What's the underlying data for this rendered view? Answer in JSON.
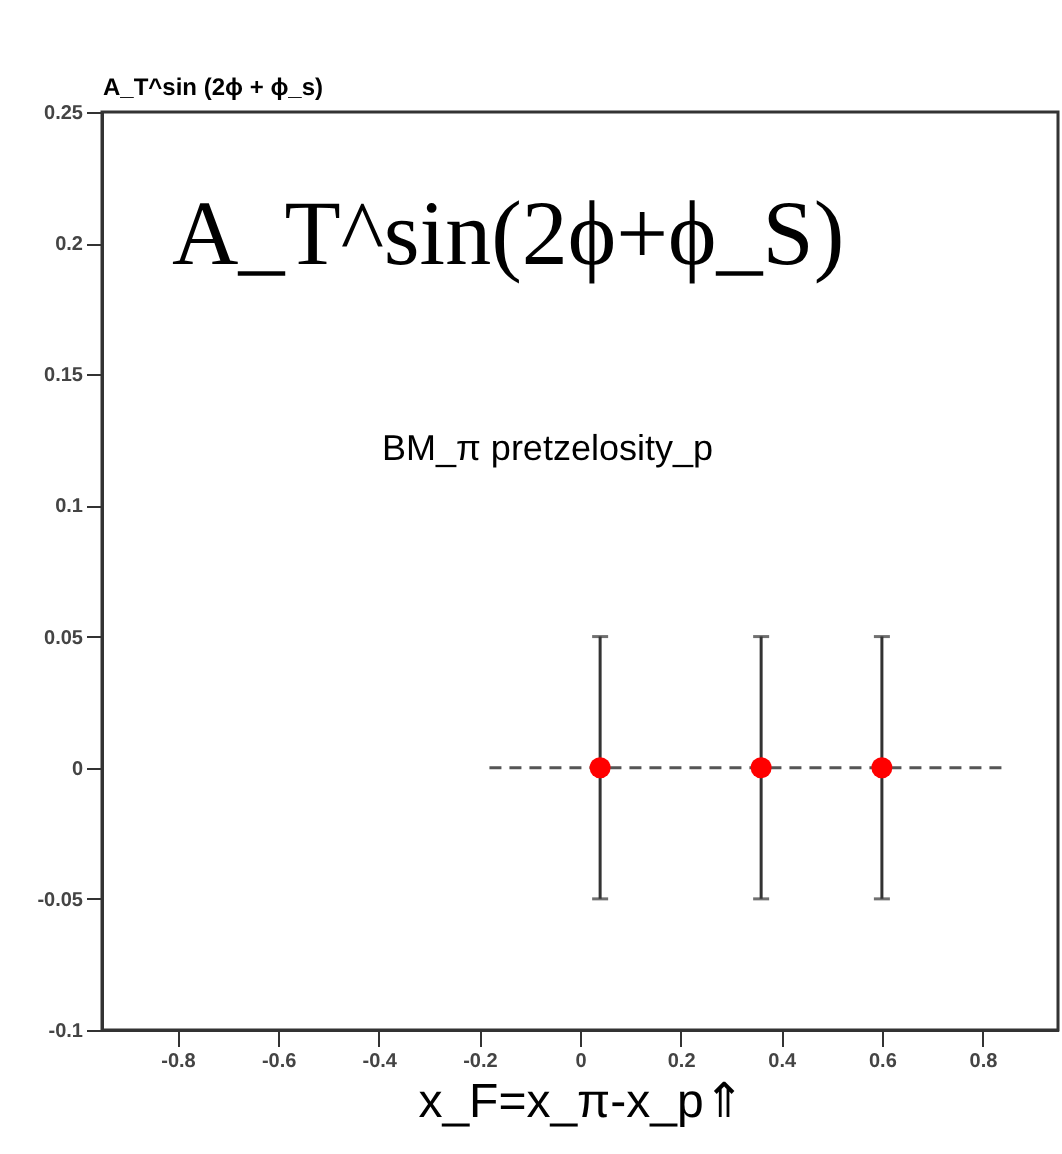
{
  "chart_data": {
    "type": "scatter",
    "ylabel": "A_T^sin (2ϕ + ϕ_s)",
    "xlabel": "x_F=x_π-x_p⇑",
    "annotations": [
      "A_T^sin(2ϕ+ϕ_S)",
      "BM_π pretzelosity_p"
    ],
    "xlim": [
      -0.95,
      0.95
    ],
    "xticks": [
      -0.8,
      -0.6,
      -0.4,
      -0.2,
      0,
      0.2,
      0.4,
      0.6,
      0.8
    ],
    "ylim": [
      -0.1,
      0.25
    ],
    "yticks": [
      -0.1,
      -0.05,
      0,
      0.05,
      0.1,
      0.15,
      0.2,
      0.25
    ],
    "grid": false,
    "series": [
      {
        "type": "line",
        "color": "#555555",
        "line_style": "dashed",
        "marker": "none",
        "x": [
          -0.18,
          0.85
        ],
        "values": [
          0,
          0
        ]
      },
      {
        "color": "#ff0000",
        "marker": "circle",
        "x": [
          0.04,
          0.36,
          0.6
        ],
        "values": [
          0,
          0,
          0
        ],
        "errors": [
          0.05,
          0.05,
          0.05
        ]
      }
    ]
  }
}
